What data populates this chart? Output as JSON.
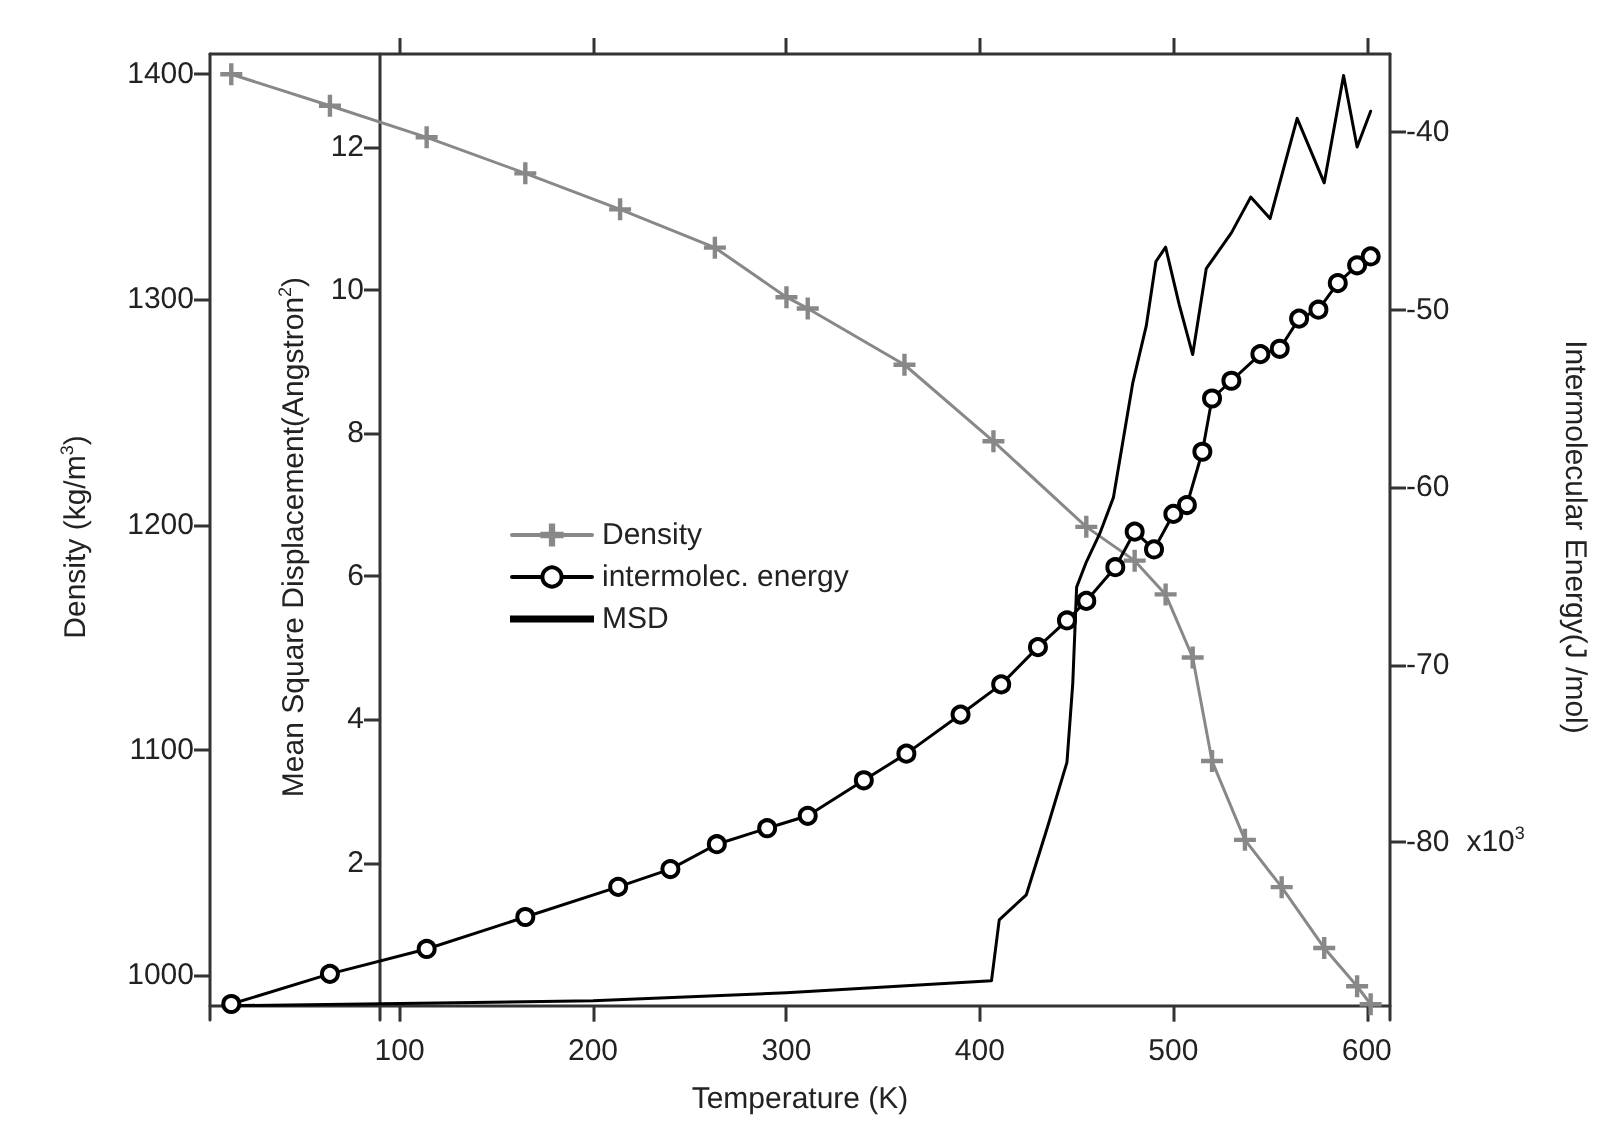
{
  "chart_data": {
    "type": "line",
    "xlabel": "Temperature (K)",
    "ylabel": "Density (kg/m$^{3}$)",
    "y2label": "Mean Square Displacement(Angstron$^{2}$)",
    "y3label": "Intermolecular Energy(J /mol)",
    "xlim": [
      2,
      612
    ],
    "xticks": [
      100,
      200,
      300,
      400,
      500,
      600
    ],
    "ylim": [
      980,
      1409
    ],
    "yticks": [
      1000,
      1100,
      1200,
      1300,
      1400
    ],
    "y2lim": [
      -0.2,
      13.3
    ],
    "y2ticks": [
      2,
      4,
      6,
      8,
      10,
      12
    ],
    "y3lim": [
      -90,
      -35.6
    ],
    "y3ticks": [
      -80,
      -70,
      -60,
      -50,
      -40
    ],
    "annotations": [
      "x10$^{3}$"
    ],
    "legend": "left",
    "grid": false,
    "line_style": "solid",
    "series": [
      {
        "name": "Density",
        "color": "#888888",
        "marker": "cross",
        "x": [
          13,
          64,
          114,
          165,
          214,
          263,
          300,
          311,
          361,
          407,
          455,
          480,
          496,
          510,
          520,
          537,
          556,
          578,
          595,
          602
        ],
        "values": [
          1400,
          1386,
          1372,
          1356,
          1340,
          1323,
          1301,
          1296,
          1271,
          1237,
          1199,
          1184,
          1169,
          1141,
          1095,
          1060,
          1039,
          1012,
          995,
          987
        ]
      },
      {
        "name": "intermolec. energy",
        "color": "#000000",
        "marker": "circle",
        "axis": "y3",
        "x": [
          13,
          64,
          114,
          165,
          213,
          240,
          264,
          290,
          311,
          340,
          362,
          390,
          411,
          430,
          445,
          455,
          470,
          480,
          490,
          500,
          507,
          515,
          520,
          530,
          545,
          555,
          565,
          575,
          585,
          595,
          602
        ],
        "values": [
          -89.1,
          -87.4,
          -86,
          -84.2,
          -82.5,
          -81.5,
          -80.1,
          -79.2,
          -78.5,
          -76.5,
          -75,
          -72.8,
          -71.1,
          -69,
          -67.5,
          -66.4,
          -64.5,
          -62.5,
          -63.5,
          -61.5,
          -61,
          -58,
          -55,
          -54,
          -52.5,
          -52.2,
          -50.5,
          -50,
          -48.5,
          -47.5,
          -47
        ]
      },
      {
        "name": "MSD",
        "color": "#000000",
        "marker": "none",
        "axis": "y2",
        "x": [
          13,
          100,
          200,
          300,
          406,
          410,
          424,
          435,
          445,
          448,
          450,
          455,
          462,
          469,
          479,
          486,
          491,
          496,
          503,
          510,
          517,
          530,
          540,
          550,
          564,
          578,
          588,
          595,
          602
        ],
        "values": [
          0,
          0.03,
          0.07,
          0.18,
          0.35,
          1.2,
          1.55,
          2.5,
          3.4,
          4.5,
          5.85,
          6.2,
          6.6,
          7.1,
          8.7,
          9.5,
          10.4,
          10.6,
          9.8,
          9.1,
          10.3,
          10.8,
          11.3,
          11,
          12.4,
          11.5,
          13,
          12,
          12.5
        ]
      }
    ]
  }
}
